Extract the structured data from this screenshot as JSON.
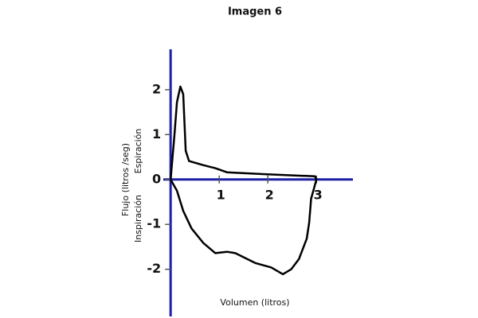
{
  "chart_data": {
    "type": "line",
    "title": "Imagen 6",
    "xlabel": "Volumen (litros)",
    "ylabel": "Flujo (litros /seg)",
    "annotations": [
      "Espiración",
      "Inspiración"
    ],
    "x": [
      0,
      0.08,
      0.13,
      0.2,
      0.26,
      0.31,
      0.38,
      0.67,
      0.92,
      1.16,
      1.9,
      2.56,
      2.97,
      3,
      2.89,
      2.85,
      2.8,
      2.64,
      2.48,
      2.31,
      2.07,
      1.74,
      1.33,
      1.16,
      0.92,
      0.67,
      0.43,
      0.26,
      0.13,
      0
    ],
    "series": [
      {
        "color": "#000000",
        "values": [
          0,
          1.0,
          1.72,
          2.07,
          1.9,
          0.64,
          0.41,
          0.32,
          0.25,
          0.16,
          0.12,
          0.09,
          0.07,
          0,
          -0.43,
          -0.96,
          -1.32,
          -1.77,
          -2.0,
          -2.11,
          -1.96,
          -1.86,
          -1.64,
          -1.61,
          -1.64,
          -1.41,
          -1.09,
          -0.7,
          -0.25,
          0
        ]
      }
    ],
    "axis_color": "#1f1fa8",
    "xlim": [
      -0.15,
      3.75
    ],
    "ylim": [
      -3.05,
      2.9
    ],
    "xticks": [
      1,
      2,
      3
    ],
    "yticks": [
      -2,
      -1,
      0,
      1,
      2
    ]
  }
}
